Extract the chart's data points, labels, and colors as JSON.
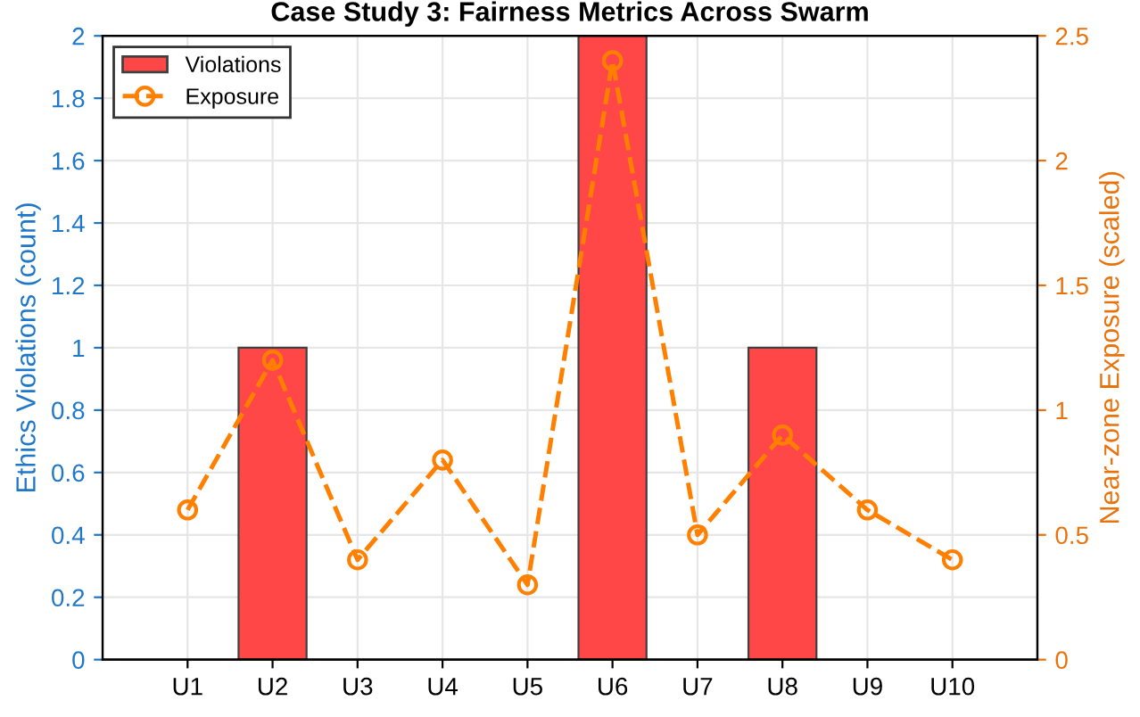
{
  "chart_data": {
    "type": "bar",
    "title": "Case Study 3: Fairness Metrics Across Swarm",
    "ylabel": "Ethics Violations (count)",
    "y2label": "Near-zone Exposure (scaled)",
    "categories": [
      "U1",
      "U2",
      "U3",
      "U4",
      "U5",
      "U6",
      "U7",
      "U8",
      "U9",
      "U10"
    ],
    "series": [
      {
        "name": "Violations",
        "color": "#ff4747",
        "values": [
          0,
          1,
          0,
          0,
          0,
          2,
          0,
          1,
          0,
          0
        ]
      },
      {
        "name": "Exposure",
        "type": "line",
        "axis": "y2",
        "color": "#ff8000",
        "marker": "circle",
        "line_style": "dashed",
        "values": [
          0.6,
          1.2,
          0.4,
          0.8,
          0.3,
          2.4,
          0.5,
          0.9,
          0.6,
          0.4
        ]
      }
    ],
    "ylim": [
      0,
      2
    ],
    "yticks": [
      0,
      0.2,
      0.4,
      0.6,
      0.8,
      1,
      1.2,
      1.4,
      1.6,
      1.8,
      2
    ],
    "y2lim": [
      0,
      2.5
    ],
    "y2ticks": [
      0,
      0.5,
      1,
      1.5,
      2,
      2.5
    ],
    "grid": true,
    "legend": "top left"
  }
}
